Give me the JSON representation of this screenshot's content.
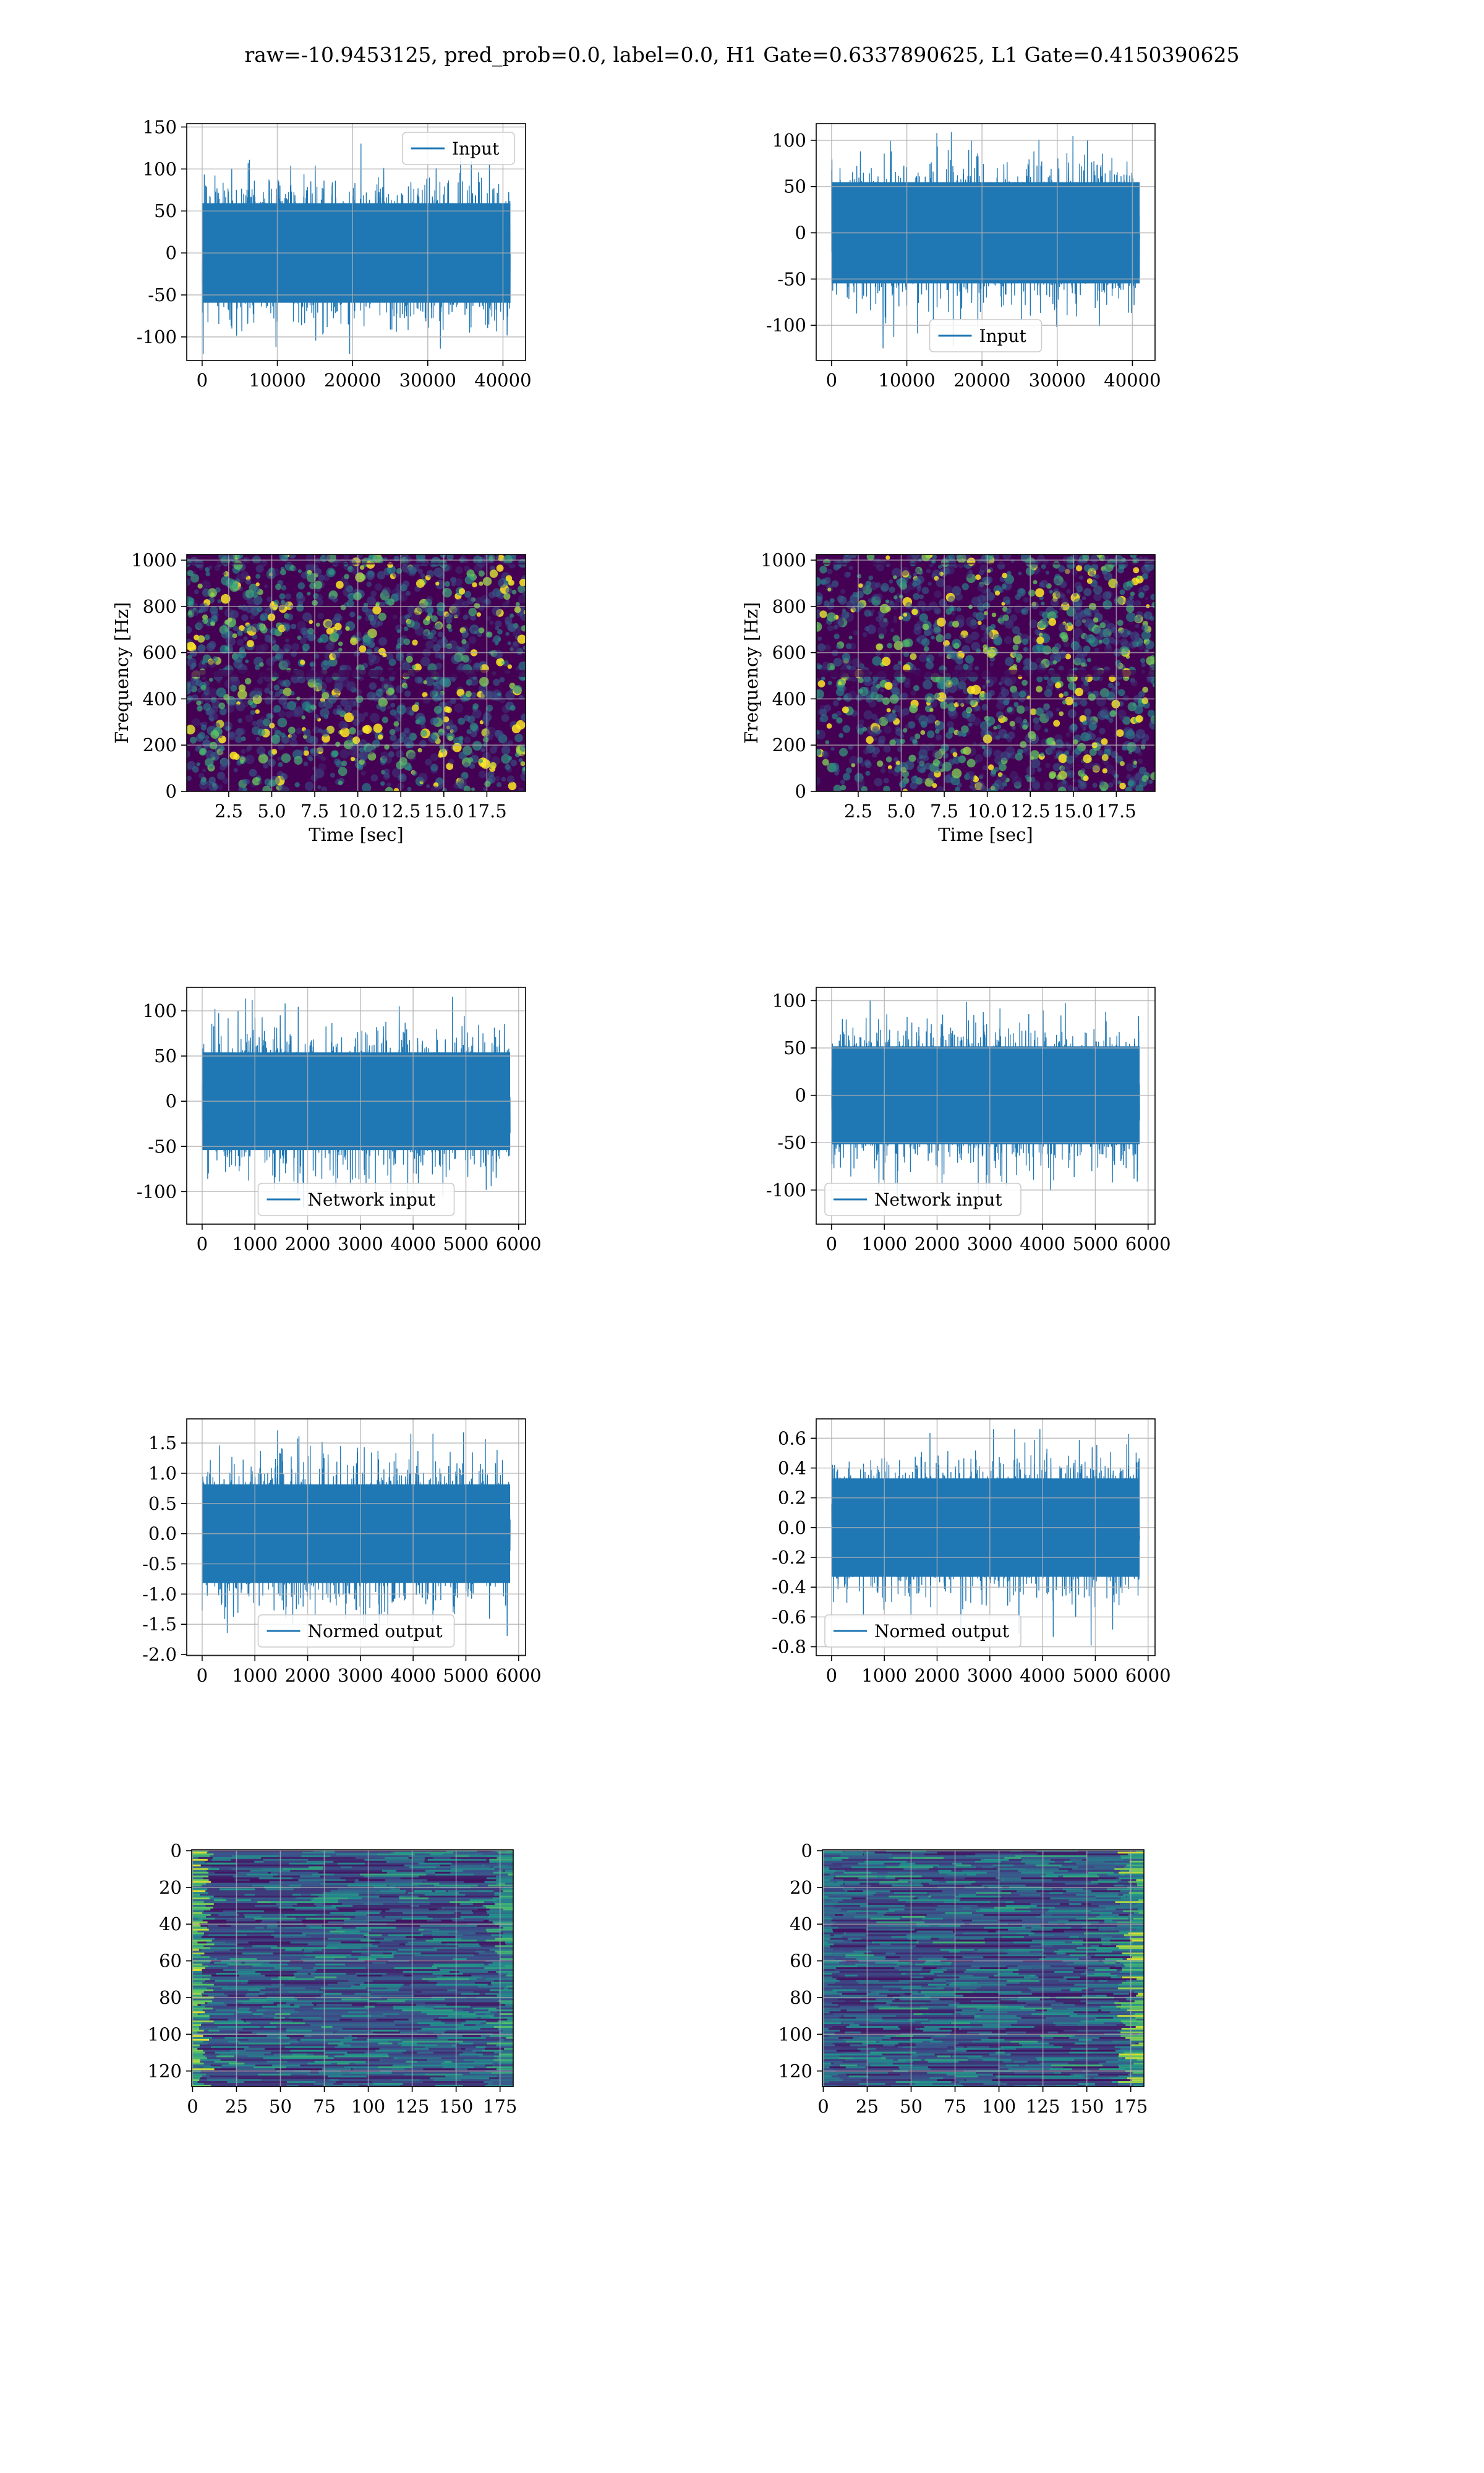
{
  "figure": {
    "suptitle": "raw=-10.9453125, pred_prob=0.0, label=0.0, H1 Gate=0.6337890625, L1 Gate=0.4150390625"
  },
  "colors": {
    "line": "#1f77b4",
    "grid": "#b0b0b0",
    "viridis_dark": "#440154",
    "viridis_mid": "#21918c",
    "viridis_bright": "#fde725"
  },
  "chart_data": [
    {
      "id": "p1",
      "type": "line",
      "title": "",
      "series": [
        {
          "name": "Input",
          "n_points": 40960,
          "approx_envelope": [
            -120,
            140
          ]
        }
      ],
      "xlabel": "",
      "ylabel": "",
      "xlim": [
        -2048,
        43008
      ],
      "ylim": [
        -128,
        154
      ],
      "xticks": [
        0,
        10000,
        20000,
        30000,
        40000
      ],
      "yticks": [
        -100,
        -50,
        0,
        50,
        100,
        150
      ],
      "legend": "upper right",
      "grid": true
    },
    {
      "id": "p2",
      "type": "line",
      "title": "",
      "series": [
        {
          "name": "Input",
          "n_points": 40960,
          "approx_envelope": [
            -125,
            115
          ]
        }
      ],
      "xlabel": "",
      "ylabel": "",
      "xlim": [
        -2048,
        43008
      ],
      "ylim": [
        -138,
        118
      ],
      "xticks": [
        0,
        10000,
        20000,
        30000,
        40000
      ],
      "yticks": [
        -100,
        -50,
        0,
        50,
        100
      ],
      "legend": "lower center",
      "grid": true
    },
    {
      "id": "p3",
      "type": "heatmap",
      "title": "",
      "description_note": "spectrogram",
      "xlabel": "Time [sec]",
      "ylabel": "Frequency [Hz]",
      "xlim": [
        0.06,
        19.75
      ],
      "ylim": [
        0,
        1024
      ],
      "xticks": [
        2.5,
        5.0,
        7.5,
        10.0,
        12.5,
        15.0,
        17.5
      ],
      "yticks": [
        0,
        200,
        400,
        600,
        800,
        1000
      ],
      "colormap": "viridis",
      "grid": true
    },
    {
      "id": "p4",
      "type": "heatmap",
      "title": "",
      "xlabel": "Time [sec]",
      "ylabel": "Frequency [Hz]",
      "xlim": [
        0.06,
        19.75
      ],
      "ylim": [
        0,
        1024
      ],
      "xticks": [
        2.5,
        5.0,
        7.5,
        10.0,
        12.5,
        15.0,
        17.5
      ],
      "yticks": [
        0,
        200,
        400,
        600,
        800,
        1000
      ],
      "colormap": "viridis",
      "grid": true
    },
    {
      "id": "p5",
      "type": "line",
      "title": "",
      "series": [
        {
          "name": "Network input",
          "n_points": 5840,
          "approx_envelope": [
            -122,
            115
          ]
        }
      ],
      "xlabel": "",
      "ylabel": "",
      "xlim": [
        -292,
        6132
      ],
      "ylim": [
        -136,
        126
      ],
      "xticks": [
        0,
        1000,
        2000,
        3000,
        4000,
        5000,
        6000
      ],
      "yticks": [
        -100,
        -50,
        0,
        50,
        100
      ],
      "legend": "lower center",
      "grid": true
    },
    {
      "id": "p6",
      "type": "line",
      "title": "",
      "series": [
        {
          "name": "Network input",
          "n_points": 5840,
          "approx_envelope": [
            -124,
            103
          ]
        }
      ],
      "xlabel": "",
      "ylabel": "",
      "xlim": [
        -292,
        6132
      ],
      "ylim": [
        -136,
        114
      ],
      "xticks": [
        0,
        1000,
        2000,
        3000,
        4000,
        5000,
        6000
      ],
      "yticks": [
        -100,
        -50,
        0,
        50,
        100
      ],
      "legend": "lower left",
      "grid": true
    },
    {
      "id": "p7",
      "type": "line",
      "title": "",
      "series": [
        {
          "name": "Normed output",
          "n_points": 5840,
          "approx_envelope": [
            -1.85,
            1.73
          ]
        }
      ],
      "xlabel": "",
      "ylabel": "",
      "xlim": [
        -292,
        6132
      ],
      "ylim": [
        -2.02,
        1.9
      ],
      "xticks": [
        0,
        1000,
        2000,
        3000,
        4000,
        5000,
        6000
      ],
      "yticks": [
        -2.0,
        -1.5,
        -1.0,
        -0.5,
        0.0,
        0.5,
        1.0,
        1.5
      ],
      "legend": "lower center",
      "grid": true
    },
    {
      "id": "p8",
      "type": "line",
      "title": "",
      "series": [
        {
          "name": "Normed output",
          "n_points": 5840,
          "approx_envelope": [
            -0.79,
            0.66
          ]
        }
      ],
      "xlabel": "",
      "ylabel": "",
      "xlim": [
        -292,
        6132
      ],
      "ylim": [
        -0.86,
        0.73
      ],
      "xticks": [
        0,
        1000,
        2000,
        3000,
        4000,
        5000,
        6000
      ],
      "yticks": [
        -0.8,
        -0.6,
        -0.4,
        -0.2,
        0.0,
        0.2,
        0.4,
        0.6
      ],
      "legend": "lower left",
      "grid": true
    },
    {
      "id": "p9",
      "type": "heatmap",
      "title": "",
      "xlabel": "",
      "ylabel": "",
      "xlim": [
        -0.5,
        182.5
      ],
      "ylim": [
        128.5,
        -0.5
      ],
      "xticks": [
        0,
        25,
        50,
        75,
        100,
        125,
        150,
        175
      ],
      "yticks": [
        0,
        20,
        40,
        60,
        80,
        100,
        120
      ],
      "colormap": "viridis",
      "grid": true
    },
    {
      "id": "p10",
      "type": "heatmap",
      "title": "",
      "xlabel": "",
      "ylabel": "",
      "xlim": [
        -0.5,
        182.5
      ],
      "ylim": [
        128.5,
        -0.5
      ],
      "xticks": [
        0,
        25,
        50,
        75,
        100,
        125,
        150,
        175
      ],
      "yticks": [
        0,
        20,
        40,
        60,
        80,
        100,
        120
      ],
      "colormap": "viridis",
      "grid": true
    }
  ]
}
